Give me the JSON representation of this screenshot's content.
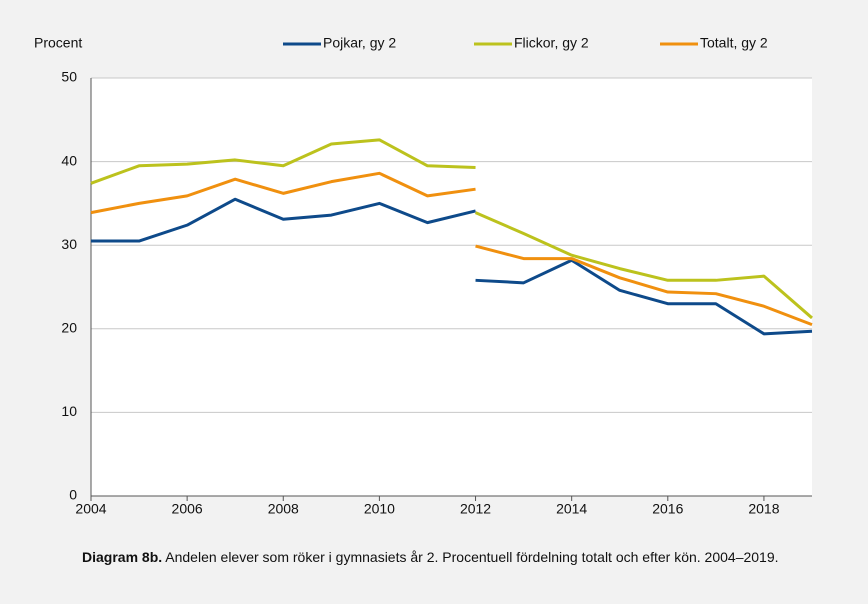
{
  "chart_data": {
    "type": "line",
    "y_label": "Procent",
    "caption_bold": "Diagram 8b.",
    "caption": "Andelen elever som röker i gymnasiets år 2. Procentuell fördelning totalt och efter kön. 2004–2019.",
    "x": [
      2004,
      2005,
      2006,
      2007,
      2008,
      2009,
      2010,
      2011,
      2012,
      2012,
      2012,
      2013,
      2014,
      2015,
      2016,
      2017,
      2018,
      2019
    ],
    "series": [
      {
        "name": "Pojkar, gy 2",
        "color": "#0e4a8a",
        "values": [
          30.5,
          30.5,
          32.4,
          35.5,
          33.1,
          33.6,
          35.0,
          32.7,
          34.1,
          null,
          25.8,
          25.5,
          28.2,
          24.6,
          23.0,
          23.0,
          19.4,
          19.7
        ]
      },
      {
        "name": "Flickor, gy 2",
        "color": "#bcc21d",
        "values": [
          37.4,
          39.5,
          39.7,
          40.2,
          39.5,
          42.1,
          42.6,
          39.5,
          39.3,
          null,
          33.9,
          31.4,
          28.8,
          27.2,
          25.8,
          25.8,
          26.3,
          21.3
        ]
      },
      {
        "name": "Totalt, gy 2",
        "color": "#f0900f",
        "values": [
          33.9,
          35.0,
          35.9,
          37.9,
          36.2,
          37.6,
          38.6,
          35.9,
          36.7,
          null,
          29.9,
          28.4,
          28.4,
          26.1,
          24.4,
          24.2,
          22.7,
          20.5
        ]
      }
    ],
    "xlim": [
      2004,
      2019
    ],
    "xticks": [
      2004,
      2006,
      2008,
      2010,
      2012,
      2014,
      2016,
      2018
    ],
    "ylim": [
      0,
      50
    ],
    "yticks": [
      0,
      10,
      20,
      30,
      40,
      50
    ],
    "grid": true
  }
}
